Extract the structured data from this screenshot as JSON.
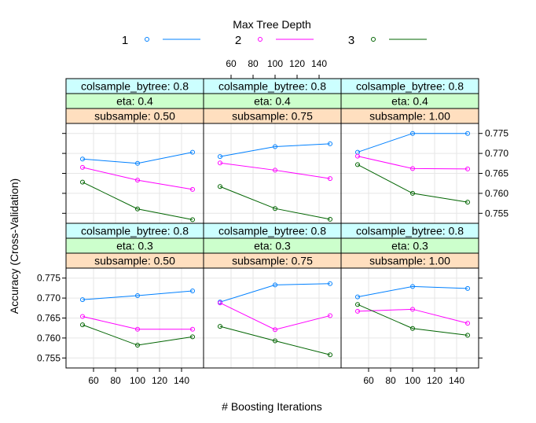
{
  "chart_data": {
    "type": "line",
    "xlabel": "# Boosting Iterations",
    "ylabel": "Accuracy (Cross-Validation)",
    "xlim": [
      35,
      160
    ],
    "ylim": [
      0.7525,
      0.7775
    ],
    "x_ticks": [
      60,
      80,
      100,
      120,
      140
    ],
    "y_ticks": [
      0.755,
      0.76,
      0.765,
      0.77,
      0.775
    ],
    "x_tick_labels": [
      "60",
      "80",
      "100",
      "120",
      "140"
    ],
    "y_tick_labels": [
      "0.755",
      "0.760",
      "0.765",
      "0.770",
      "0.775"
    ],
    "grid": true,
    "legend": {
      "title": "Max Tree Depth",
      "position": "top",
      "entries": [
        {
          "label": "1",
          "color": "#0080ff"
        },
        {
          "label": "2",
          "color": "#ff00ff"
        },
        {
          "label": "3",
          "color": "#006400"
        }
      ]
    },
    "x": [
      50,
      100,
      150
    ],
    "panels": [
      {
        "strips": [
          "colsample_bytree: 0.8",
          "eta: 0.4",
          "subsample: 0.50"
        ],
        "series": [
          {
            "name": "1",
            "values": [
              0.7686,
              0.7675,
              0.7703
            ]
          },
          {
            "name": "2",
            "values": [
              0.7665,
              0.7633,
              0.761
            ]
          },
          {
            "name": "3",
            "values": [
              0.7628,
              0.7561,
              0.7534
            ]
          }
        ]
      },
      {
        "strips": [
          "colsample_bytree: 0.8",
          "eta: 0.4",
          "subsample: 0.75"
        ],
        "series": [
          {
            "name": "1",
            "values": [
              0.7692,
              0.7717,
              0.7724
            ]
          },
          {
            "name": "2",
            "values": [
              0.7676,
              0.7658,
              0.7637
            ]
          },
          {
            "name": "3",
            "values": [
              0.7617,
              0.7562,
              0.7535
            ]
          }
        ]
      },
      {
        "strips": [
          "colsample_bytree: 0.8",
          "eta: 0.4",
          "subsample: 1.00"
        ],
        "series": [
          {
            "name": "1",
            "values": [
              0.7703,
              0.775,
              0.775
            ]
          },
          {
            "name": "2",
            "values": [
              0.7693,
              0.7662,
              0.7661
            ]
          },
          {
            "name": "3",
            "values": [
              0.7672,
              0.76,
              0.7578
            ]
          }
        ]
      },
      {
        "strips": [
          "colsample_bytree: 0.8",
          "eta: 0.3",
          "subsample: 0.50"
        ],
        "series": [
          {
            "name": "1",
            "values": [
              0.7696,
              0.7706,
              0.7718
            ]
          },
          {
            "name": "2",
            "values": [
              0.7654,
              0.7622,
              0.7622
            ]
          },
          {
            "name": "3",
            "values": [
              0.7633,
              0.7582,
              0.7603
            ]
          }
        ]
      },
      {
        "strips": [
          "colsample_bytree: 0.8",
          "eta: 0.3",
          "subsample: 0.75"
        ],
        "series": [
          {
            "name": "1",
            "values": [
              0.769,
              0.7733,
              0.7736
            ]
          },
          {
            "name": "2",
            "values": [
              0.7688,
              0.7621,
              0.7656
            ]
          },
          {
            "name": "3",
            "values": [
              0.7629,
              0.7593,
              0.7558
            ]
          }
        ]
      },
      {
        "strips": [
          "colsample_bytree: 0.8",
          "eta: 0.3",
          "subsample: 1.00"
        ],
        "series": [
          {
            "name": "1",
            "values": [
              0.7703,
              0.7729,
              0.7724
            ]
          },
          {
            "name": "2",
            "values": [
              0.7667,
              0.7672,
              0.7637
            ]
          },
          {
            "name": "3",
            "values": [
              0.7684,
              0.7624,
              0.7607
            ]
          }
        ]
      }
    ]
  }
}
